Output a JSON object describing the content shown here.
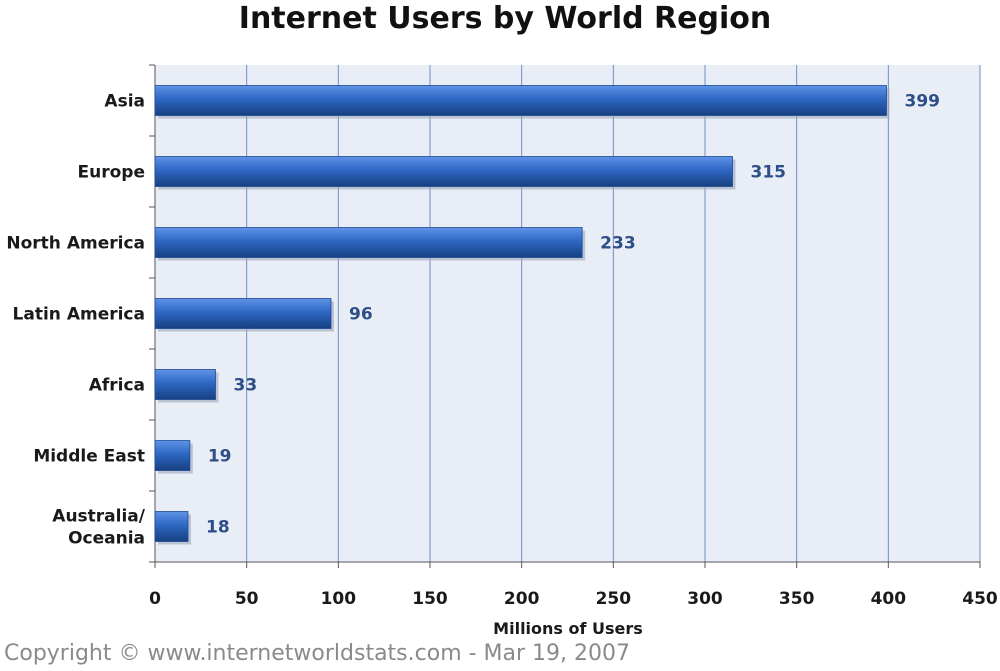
{
  "chart_data": {
    "type": "bar",
    "orientation": "horizontal",
    "title": "Internet Users by World Region",
    "categories": [
      "Asia",
      "Europe",
      "North America",
      "Latin America",
      "Africa",
      "Middle East",
      "Australia/\nOceania"
    ],
    "values": [
      399,
      315,
      233,
      96,
      33,
      19,
      18
    ],
    "value_labels": [
      "399",
      "315",
      "233",
      "96",
      "33",
      "19",
      "18"
    ],
    "xlabel": "Millions of Users",
    "ylabel": "",
    "xlim": [
      0,
      450
    ],
    "xticks": [
      "0",
      "50",
      "100",
      "150",
      "200",
      "250",
      "300",
      "350",
      "400",
      "450"
    ],
    "grid": true,
    "bar_color": "#2e67c4",
    "plot_background": "#e9edf6",
    "gridline_color": "#6f8fc4",
    "value_label_color": "#2d4e86"
  },
  "footer": {
    "copyright": "Copyright © www.internetworldstats.com - Mar 19, 2007"
  }
}
